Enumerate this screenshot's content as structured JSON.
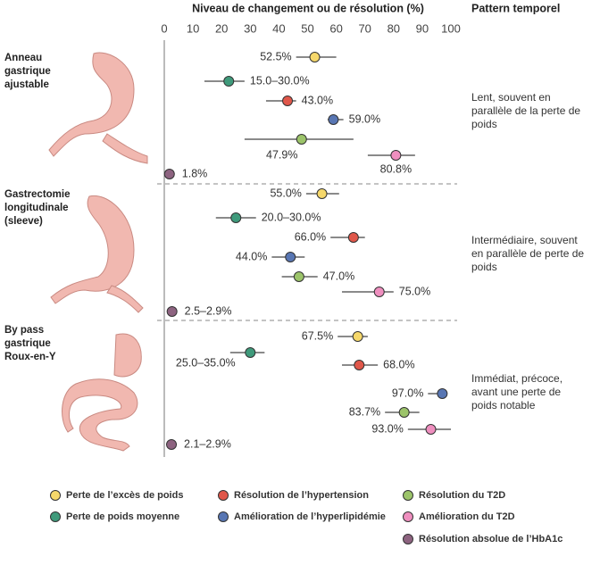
{
  "chart_data": {
    "type": "dot",
    "title": "Niveau de changement ou de résolution (%)",
    "pattern_header": "Pattern temporel",
    "xlim": [
      0,
      100
    ],
    "xticks": [
      0,
      10,
      20,
      30,
      40,
      50,
      60,
      70,
      80,
      90,
      100
    ],
    "groups": [
      {
        "lines": [
          "Anneau",
          "gastrique",
          "ajustable"
        ],
        "pattern": [
          "Lent, souvent en",
          "parallèle de la perte de",
          "poids"
        ]
      },
      {
        "lines": [
          "Gastrectomie",
          "longitudinale",
          "(sleeve)"
        ],
        "pattern": [
          "Intermédiaire, souvent",
          "en parallèle de perte de",
          "poids"
        ]
      },
      {
        "lines": [
          "By pass",
          "gastrique",
          "Roux-en-Y"
        ],
        "pattern": [
          "Immédiat, précoce,",
          "avant une perte de",
          "poids notable"
        ]
      }
    ],
    "series": [
      {
        "name": "Perte de l’excès de poids",
        "color": "#f6d86b",
        "values": [
          52.5,
          55.0,
          67.5
        ],
        "value_labels": [
          "52.5%",
          "55.0%",
          "67.5%"
        ],
        "low": [
          46,
          49.5,
          60.5
        ],
        "high": [
          60,
          61,
          71
        ]
      },
      {
        "name": "Perte de poids moyenne",
        "color": "#3f9a7b",
        "values": [
          22.5,
          25,
          30
        ],
        "value_labels": [
          "15.0–30.0%",
          "20.0–30.0%",
          "25.0–35.0%"
        ],
        "low": [
          14,
          18,
          23
        ],
        "high": [
          28,
          32,
          35
        ]
      },
      {
        "name": "Résolution de l’hypertension",
        "color": "#e0574a",
        "values": [
          43.0,
          66.0,
          68.0
        ],
        "value_labels": [
          "43.0%",
          "66.0%",
          "68.0%"
        ],
        "low": [
          35.5,
          58,
          62
        ],
        "high": [
          46,
          70,
          74.5
        ]
      },
      {
        "name": "Amélioration de l’hyperlipidémie",
        "color": "#5876b3",
        "values": [
          59.0,
          44.0,
          97.0
        ],
        "value_labels": [
          "59.0%",
          "44.0%",
          "97.0%"
        ],
        "low": [
          57,
          37.5,
          92
        ],
        "high": [
          62.5,
          49,
          98.5
        ]
      },
      {
        "name": "Résolution du T2D",
        "color": "#9cc46a",
        "values": [
          47.9,
          47.0,
          83.7
        ],
        "value_labels": [
          "47.9%",
          "47.0%",
          "83.7%"
        ],
        "low": [
          28,
          41,
          77
        ],
        "high": [
          66,
          53.5,
          89
        ]
      },
      {
        "name": "Amélioration du T2D",
        "color": "#ef8fbf",
        "values": [
          80.8,
          75.0,
          93.0
        ],
        "value_labels": [
          "80.8%",
          "75.0%",
          "93.0%"
        ],
        "low": [
          71,
          62,
          85
        ],
        "high": [
          87.5,
          80,
          100
        ]
      },
      {
        "name": "Résolution absolue de l’HbA1c",
        "color": "#8d6380",
        "values": [
          1.8,
          2.7,
          2.5
        ],
        "value_labels": [
          "1.8%",
          "2.5–2.9%",
          "2.1–2.9%"
        ],
        "low": [
          null,
          null,
          null
        ],
        "high": [
          null,
          null,
          null
        ]
      }
    ]
  }
}
